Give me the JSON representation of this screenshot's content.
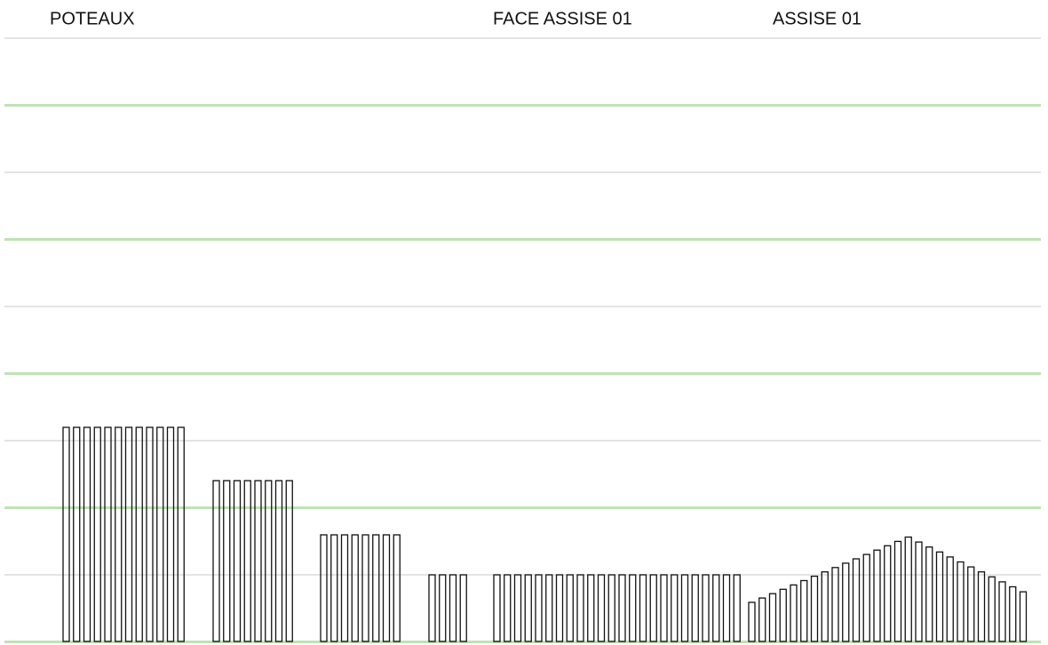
{
  "labels": [
    "POTEAUX",
    "FACE ASSISE 01",
    "ASSISE 01"
  ]
}
